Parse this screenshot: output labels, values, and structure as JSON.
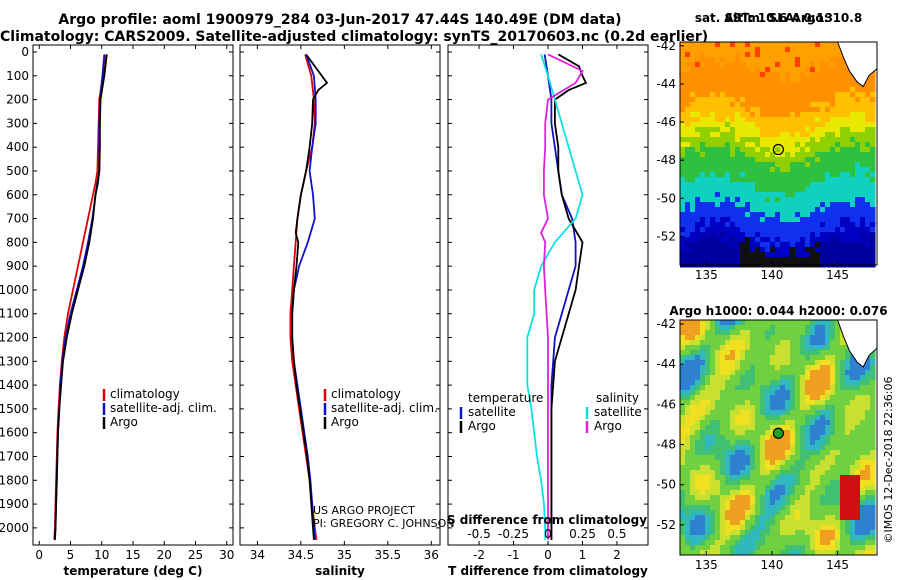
{
  "header": {
    "line1": "Argo profile: aoml 1900979_284 03-Jun-2017 47.44S 140.49E (DM data)",
    "line2": "Climatology: CARS2009. Satellite-adjusted climatology: synTS_20170603.nc (0.2d earlier)"
  },
  "credits": {
    "project": "US ARGO PROJECT",
    "pi": "PI: GREGORY C. JOHNSON",
    "stamp": "©IMOS 12-Dec-2018 22:36:06"
  },
  "colors": {
    "climatology": "#e00000",
    "satellite": "#1010c8",
    "argo": "#000000",
    "sal_satellite": "#10e0e0",
    "sal_argo": "#e020e0"
  },
  "chart_data": [
    {
      "type": "line",
      "xlabel": "temperature (deg C)",
      "xlim": [
        -1,
        31
      ],
      "xticks": [
        0,
        5,
        10,
        15,
        20,
        25,
        30
      ],
      "ylim": [
        2060,
        0
      ],
      "yticks": [
        0,
        100,
        200,
        300,
        400,
        500,
        600,
        700,
        800,
        900,
        1000,
        1100,
        1200,
        1300,
        1400,
        1500,
        1600,
        1700,
        1800,
        1900,
        2000
      ],
      "legend": [
        "climatology",
        "satellite-adj. clim.",
        "Argo"
      ],
      "series": [
        {
          "name": "climatology",
          "y": [
            10,
            100,
            200,
            300,
            400,
            500,
            550,
            600,
            700,
            800,
            900,
            1000,
            1100,
            1200,
            1300,
            1400,
            1500,
            1600,
            1700,
            1800,
            1900,
            2000,
            2050
          ],
          "x": [
            10.5,
            10.2,
            9.6,
            9.5,
            9.4,
            9.3,
            9.0,
            8.6,
            7.8,
            7.0,
            6.2,
            5.4,
            4.6,
            4.0,
            3.6,
            3.3,
            3.1,
            2.9,
            2.8,
            2.7,
            2.6,
            2.5,
            2.4
          ]
        },
        {
          "name": "satellite-adj. clim.",
          "y": [
            10,
            100,
            200,
            300,
            400,
            500,
            550,
            600,
            700,
            800,
            900,
            1000,
            1100,
            1200,
            1300,
            1400,
            1500,
            1600,
            1700,
            1800,
            1900,
            2000,
            2050
          ],
          "x": [
            10.4,
            10.1,
            9.7,
            9.6,
            9.6,
            9.6,
            9.4,
            9.0,
            8.5,
            7.8,
            7.0,
            6.0,
            5.0,
            4.2,
            3.7,
            3.4,
            3.2,
            3.0,
            2.9,
            2.8,
            2.7,
            2.6,
            2.5
          ]
        },
        {
          "name": "Argo",
          "y": [
            10,
            100,
            200,
            300,
            400,
            500,
            550,
            600,
            700,
            800,
            900,
            1000,
            1100,
            1200,
            1300,
            1400,
            1500,
            1600,
            1700,
            1800,
            1900,
            2000,
            2050
          ],
          "x": [
            10.8,
            10.4,
            9.8,
            9.7,
            9.7,
            9.6,
            9.3,
            9.0,
            8.6,
            8.0,
            7.2,
            6.2,
            5.2,
            4.4,
            3.8,
            3.5,
            3.2,
            3.0,
            2.9,
            2.8,
            2.7,
            2.6,
            2.5
          ]
        }
      ]
    },
    {
      "type": "line",
      "xlabel": "salinity",
      "xlim": [
        33.8,
        36.1
      ],
      "xticks": [
        34,
        34.5,
        35,
        35.5,
        36
      ],
      "xticklabels": [
        "34",
        "34.5",
        "35",
        "35.5",
        "36"
      ],
      "ylim": [
        2060,
        0
      ],
      "legend": [
        "climatology",
        "satellite-adj. clim.",
        "Argo"
      ],
      "series": [
        {
          "name": "climatology",
          "y": [
            10,
            50,
            100,
            200,
            300,
            400,
            500,
            600,
            700,
            800,
            900,
            1000,
            1100,
            1200,
            1300,
            1400,
            1500,
            1600,
            1700,
            1800,
            1900,
            2000,
            2050
          ],
          "x": [
            34.55,
            34.58,
            34.62,
            34.65,
            34.66,
            34.63,
            34.56,
            34.5,
            34.46,
            34.44,
            34.42,
            34.4,
            34.38,
            34.38,
            34.4,
            34.44,
            34.48,
            34.52,
            34.56,
            34.6,
            34.63,
            34.66,
            34.68
          ]
        },
        {
          "name": "satellite-adj. clim.",
          "y": [
            10,
            50,
            100,
            200,
            300,
            400,
            500,
            600,
            700,
            800,
            900,
            1000,
            1100,
            1200,
            1300,
            1400,
            1500,
            1600,
            1700,
            1800,
            1900,
            2000,
            2050
          ],
          "x": [
            34.56,
            34.6,
            34.65,
            34.67,
            34.67,
            34.63,
            34.6,
            34.64,
            34.66,
            34.58,
            34.48,
            34.42,
            34.4,
            34.4,
            34.42,
            34.46,
            34.5,
            34.54,
            34.58,
            34.61,
            34.63,
            34.65,
            34.66
          ]
        },
        {
          "name": "Argo",
          "y": [
            10,
            40,
            80,
            130,
            160,
            200,
            300,
            400,
            500,
            600,
            700,
            760,
            800,
            900,
            1000,
            1100,
            1200,
            1300,
            1400,
            1500,
            1600,
            1700,
            1800,
            1900,
            2000,
            2050
          ],
          "x": [
            34.56,
            34.62,
            34.7,
            34.8,
            34.7,
            34.64,
            34.63,
            34.6,
            34.56,
            34.5,
            34.46,
            34.44,
            34.47,
            34.45,
            34.42,
            34.4,
            34.4,
            34.42,
            34.45,
            34.49,
            34.53,
            34.57,
            34.6,
            34.62,
            34.64,
            34.65
          ]
        }
      ]
    },
    {
      "type": "line",
      "xlabel": "T difference from climatology",
      "xlabel2": "S difference from climatology",
      "xlim": [
        -2.9,
        2.9
      ],
      "xticks": [
        -2,
        -1,
        0,
        1,
        2
      ],
      "xticks2": [
        -0.5,
        -0.25,
        0,
        0.25,
        0.5
      ],
      "xticklabels2": [
        "-0.5",
        "-0.25",
        "0",
        "0.25",
        "0.5"
      ],
      "ylim": [
        2060,
        0
      ],
      "legend_left_title": "temperature",
      "legend_right_title": "salinity",
      "legend_left": [
        "satellite",
        "Argo"
      ],
      "legend_right": [
        "satellite",
        "Argo"
      ],
      "series": [
        {
          "name": "temperature satellite",
          "y": [
            10,
            100,
            200,
            300,
            400,
            500,
            600,
            700,
            800,
            900,
            1000,
            1100,
            1200,
            1300,
            1400,
            1500,
            1600,
            1700,
            1800,
            1900,
            2000,
            2050
          ],
          "x": [
            -0.1,
            0.0,
            0.1,
            0.1,
            0.2,
            0.3,
            0.4,
            0.7,
            0.8,
            0.8,
            0.6,
            0.4,
            0.2,
            0.15,
            0.1,
            0.1,
            0.1,
            0.1,
            0.1,
            0.1,
            0.1,
            0.1
          ]
        },
        {
          "name": "temperature Argo",
          "y": [
            10,
            60,
            100,
            130,
            160,
            200,
            300,
            400,
            500,
            600,
            700,
            800,
            900,
            1000,
            1100,
            1200,
            1300,
            1400,
            1500,
            1600,
            1700,
            1800,
            1900,
            2000,
            2050
          ],
          "x": [
            0.3,
            0.9,
            1.0,
            1.1,
            0.6,
            0.2,
            0.2,
            0.3,
            0.3,
            0.4,
            0.6,
            1.0,
            0.9,
            0.8,
            0.6,
            0.4,
            0.2,
            0.15,
            0.1,
            0.1,
            0.1,
            0.1,
            0.1,
            0.1,
            0.1
          ]
        },
        {
          "name": "salinity satellite",
          "y": [
            10,
            100,
            200,
            300,
            400,
            500,
            600,
            700,
            800,
            900,
            1000,
            1100,
            1200,
            1300,
            1400,
            1500,
            1600,
            1700,
            1800,
            1900,
            2000,
            2050
          ],
          "x": [
            -0.05,
            0.0,
            0.05,
            0.1,
            0.15,
            0.2,
            0.25,
            0.2,
            0.05,
            -0.05,
            -0.1,
            -0.1,
            -0.15,
            -0.15,
            -0.15,
            -0.12,
            -0.1,
            -0.08,
            -0.05,
            -0.03,
            -0.02,
            -0.02
          ]
        },
        {
          "name": "salinity Argo",
          "y": [
            10,
            80,
            130,
            200,
            300,
            400,
            500,
            600,
            700,
            760,
            800,
            900,
            1000,
            1100,
            1200,
            1300,
            1400,
            1500,
            1600,
            1700,
            1800,
            1900,
            2000,
            2050
          ],
          "x": [
            0.0,
            0.25,
            0.2,
            0.0,
            -0.02,
            -0.02,
            -0.03,
            -0.03,
            0.0,
            -0.05,
            -0.02,
            -0.03,
            -0.02,
            -0.01,
            0.0,
            0.0,
            0.0,
            0.0,
            0.0,
            0.0,
            0.0,
            0.0,
            0.0,
            0.0
          ]
        }
      ]
    },
    {
      "type": "heatmap",
      "title": "sat. SST: 10.6 Argo: 10.8",
      "xticks": [
        135,
        140,
        145
      ],
      "yticks": [
        -42,
        -44,
        -46,
        -48,
        -50,
        -52
      ],
      "xlim": [
        133,
        148
      ],
      "ylim": [
        -53.5,
        -41.8
      ]
    },
    {
      "type": "heatmap",
      "title": "Altim. SLA: 0.13",
      "title2": "Argo h1000: 0.044 h2000: 0.076",
      "xticks": [
        135,
        140,
        145
      ],
      "yticks": [
        -42,
        -44,
        -46,
        -48,
        -50,
        -52
      ],
      "xlim": [
        133,
        148
      ],
      "ylim": [
        -53.5,
        -41.8
      ]
    }
  ]
}
